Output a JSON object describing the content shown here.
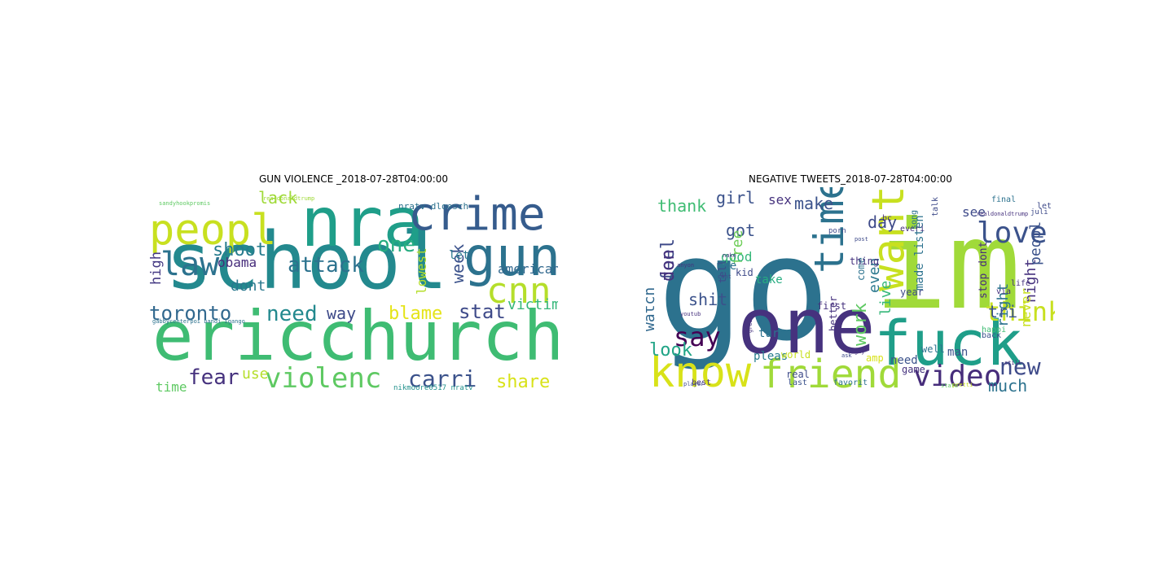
{
  "panels": [
    {
      "title": "GUN VIOLENCE _2018-07-28T04:00:00",
      "words": [
        {
          "text": "school",
          "color": "#23898e"
        },
        {
          "text": "ericchurch",
          "color": "#3fbc73"
        },
        {
          "text": "nra",
          "color": "#1f9e89"
        },
        {
          "text": "crime",
          "color": "#365c8d"
        },
        {
          "text": "gun",
          "color": "#2c728e"
        },
        {
          "text": "peopl",
          "color": "#c8e020"
        },
        {
          "text": "law",
          "color": "#2c728e"
        },
        {
          "text": "cnn",
          "color": "#b5de2b"
        },
        {
          "text": "violenc",
          "color": "#5ec962"
        },
        {
          "text": "attack",
          "color": "#2c728e"
        },
        {
          "text": "carri",
          "color": "#3b528b"
        },
        {
          "text": "toronto",
          "color": "#31688e"
        },
        {
          "text": "need",
          "color": "#23898e"
        },
        {
          "text": "fear",
          "color": "#46327e"
        },
        {
          "text": "share",
          "color": "#d8e219"
        },
        {
          "text": "blame",
          "color": "#e5e419"
        },
        {
          "text": "stat",
          "color": "#3e4a89"
        },
        {
          "text": "victim",
          "color": "#35b779"
        },
        {
          "text": "one",
          "color": "#27ad81"
        },
        {
          "text": "shoot",
          "color": "#287c8e"
        },
        {
          "text": "obama",
          "color": "#472d7b"
        },
        {
          "text": "lack",
          "color": "#a0da39"
        },
        {
          "text": "week",
          "color": "#3b528b"
        },
        {
          "text": "american",
          "color": "#31688e"
        },
        {
          "text": "lowest",
          "color": "#b5de2b"
        },
        {
          "text": "dont",
          "color": "#2a788e"
        },
        {
          "text": "high",
          "color": "#443983"
        },
        {
          "text": "way",
          "color": "#3e4a89"
        },
        {
          "text": "time",
          "color": "#5ec962"
        },
        {
          "text": "use",
          "color": "#b5de2b"
        },
        {
          "text": "let",
          "color": "#2a788e"
        },
        {
          "text": "nratv dloesch",
          "color": "#2c728e"
        },
        {
          "text": "nikmoore0517 nratv",
          "color": "#21918c"
        },
        {
          "text": "realdonaldtrump",
          "color": "#a0da39"
        },
        {
          "text": "gabbycenterpoi bandi igango",
          "color": "#2c728e"
        },
        {
          "text": "sandyhookpromis",
          "color": "#5ec962"
        }
      ]
    },
    {
      "title": "NEGATIVE TWEETS_2018-07-28T04:00:00",
      "words": [
        {
          "text": "go",
          "color": "#2c728e"
        },
        {
          "text": "im",
          "color": "#a0da39"
        },
        {
          "text": "one",
          "color": "#46327e"
        },
        {
          "text": "fuck",
          "color": "#1f9e89"
        },
        {
          "text": "know",
          "color": "#d8e219"
        },
        {
          "text": "friend",
          "color": "#a0da39"
        },
        {
          "text": "time",
          "color": "#2c728e"
        },
        {
          "text": "want",
          "color": "#c8e020"
        },
        {
          "text": "video",
          "color": "#472d7b"
        },
        {
          "text": "love",
          "color": "#3b528b"
        },
        {
          "text": "think",
          "color": "#c8e020"
        },
        {
          "text": "new",
          "color": "#3e4a89"
        },
        {
          "text": "say",
          "color": "#440154"
        },
        {
          "text": "much",
          "color": "#2c728e"
        },
        {
          "text": "day",
          "color": "#3e4a89"
        },
        {
          "text": "girl",
          "color": "#3b528b"
        },
        {
          "text": "thank",
          "color": "#3fbc73"
        },
        {
          "text": "make",
          "color": "#3b528b"
        },
        {
          "text": "feel",
          "color": "#3e4a89"
        },
        {
          "text": "don",
          "color": "#46327e"
        },
        {
          "text": "shit",
          "color": "#3b528b"
        },
        {
          "text": "look",
          "color": "#20a486"
        },
        {
          "text": "watch",
          "color": "#31688e"
        },
        {
          "text": "work",
          "color": "#5ec962"
        },
        {
          "text": "live",
          "color": "#35b779"
        },
        {
          "text": "even",
          "color": "#2a788e"
        },
        {
          "text": "got",
          "color": "#3b528b"
        },
        {
          "text": "free",
          "color": "#6ece58"
        },
        {
          "text": "good",
          "color": "#35b779"
        },
        {
          "text": "night",
          "color": "#46327e"
        },
        {
          "text": "peopl",
          "color": "#3b528b"
        },
        {
          "text": "right",
          "color": "#2c728e"
        },
        {
          "text": "never",
          "color": "#c8e020"
        },
        {
          "text": "sex",
          "color": "#46327e"
        },
        {
          "text": "see",
          "color": "#3e4a89"
        },
        {
          "text": "tri",
          "color": "#3b528b"
        },
        {
          "text": "use",
          "color": "#2c728e"
        },
        {
          "text": "pleas",
          "color": "#287c8e"
        },
        {
          "text": "need",
          "color": "#3b528b"
        },
        {
          "text": "turn",
          "color": "#2c728e"
        },
        {
          "text": "take",
          "color": "#27ad81"
        },
        {
          "text": "made listen",
          "color": "#2c728e"
        },
        {
          "text": "stop dont",
          "color": "#472d7b"
        },
        {
          "text": "real",
          "color": "#3e4a89"
        },
        {
          "text": "game",
          "color": "#46327e"
        },
        {
          "text": "man",
          "color": "#3b528b"
        },
        {
          "text": "amp",
          "color": "#d8e219"
        },
        {
          "text": "well",
          "color": "#2c728e"
        },
        {
          "text": "year",
          "color": "#3e4a89"
        },
        {
          "text": "first",
          "color": "#46327e"
        },
        {
          "text": "better",
          "color": "#46327e"
        },
        {
          "text": "come",
          "color": "#2c728e"
        },
        {
          "text": "world",
          "color": "#c8e020"
        },
        {
          "text": "thing",
          "color": "#46327e"
        },
        {
          "text": "tell",
          "color": "#3e4a89"
        },
        {
          "text": "kid",
          "color": "#3e4a89"
        },
        {
          "text": "best",
          "color": "#46327e"
        },
        {
          "text": "last",
          "color": "#3b528b"
        },
        {
          "text": "favorit",
          "color": "#2c728e"
        },
        {
          "text": "final",
          "color": "#2c728e"
        },
        {
          "text": "let",
          "color": "#3e4a89"
        },
        {
          "text": "juli",
          "color": "#3e4a89"
        },
        {
          "text": "via",
          "color": "#46327e"
        },
        {
          "text": "life",
          "color": "#46327e"
        },
        {
          "text": "back",
          "color": "#3b528b"
        },
        {
          "text": "happi",
          "color": "#3fbc73"
        },
        {
          "text": "bc",
          "color": "#46327e"
        },
        {
          "text": "porn",
          "color": "#3e4a89"
        },
        {
          "text": "everi",
          "color": "#46327e"
        },
        {
          "text": "song",
          "color": "#2c728e"
        },
        {
          "text": "talk",
          "color": "#3e4a89"
        },
        {
          "text": "realdonaldtrump",
          "color": "#46327e"
        },
        {
          "text": "anyon",
          "color": "#46327e"
        },
        {
          "text": "nake",
          "color": "#46327e"
        },
        {
          "text": "cant",
          "color": "#3e4a89"
        },
        {
          "text": "great",
          "color": "#46327e"
        },
        {
          "text": "ask",
          "color": "#3e4a89"
        },
        {
          "text": "guy",
          "color": "#46327e"
        },
        {
          "text": "state",
          "color": "#5ec962"
        },
        {
          "text": "pretti",
          "color": "#c8e020"
        },
        {
          "text": "still",
          "color": "#46327e"
        },
        {
          "text": "player",
          "color": "#3e4a89"
        },
        {
          "text": "youtub",
          "color": "#46327e"
        },
        {
          "text": "post",
          "color": "#3e4a89"
        },
        {
          "text": "reali",
          "color": "#46327e"
        }
      ]
    }
  ]
}
